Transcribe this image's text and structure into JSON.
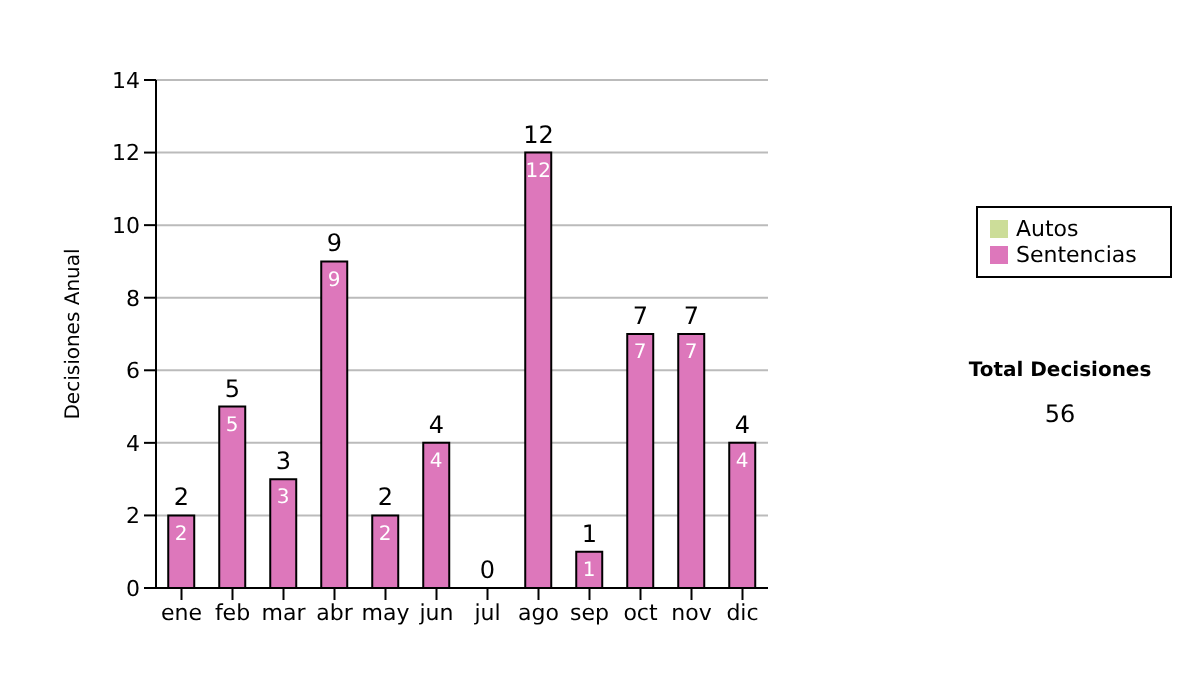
{
  "chart_data": {
    "type": "bar",
    "ylabel": "Decisiones Anual",
    "categories": [
      "ene",
      "feb",
      "mar",
      "abr",
      "may",
      "jun",
      "jul",
      "ago",
      "sep",
      "oct",
      "nov",
      "dic"
    ],
    "series": [
      {
        "name": "Sentencias",
        "color": "#dd77bb",
        "values": [
          2,
          5,
          3,
          9,
          2,
          4,
          0,
          12,
          1,
          7,
          7,
          4
        ],
        "value_labels": [
          "2",
          "5",
          "3",
          "9",
          "2",
          "4",
          null,
          "12",
          "1",
          "7",
          "7",
          "4"
        ]
      },
      {
        "name": "Autos",
        "color": "#ccdd99",
        "values": [
          0,
          0,
          0,
          0,
          0,
          0,
          0,
          0,
          0,
          0,
          0,
          0
        ]
      }
    ],
    "stacked": true,
    "totals": [
      "2",
      "5",
      "3",
      "9",
      "2",
      "4",
      "0",
      "12",
      "1",
      "7",
      "7",
      "4"
    ],
    "ylim": [
      0,
      14
    ],
    "yticks": [
      0,
      2,
      4,
      6,
      8,
      10,
      12,
      14
    ],
    "grid": "y",
    "legend": "right",
    "annotations": [
      "Total Decisiones",
      "56"
    ]
  }
}
